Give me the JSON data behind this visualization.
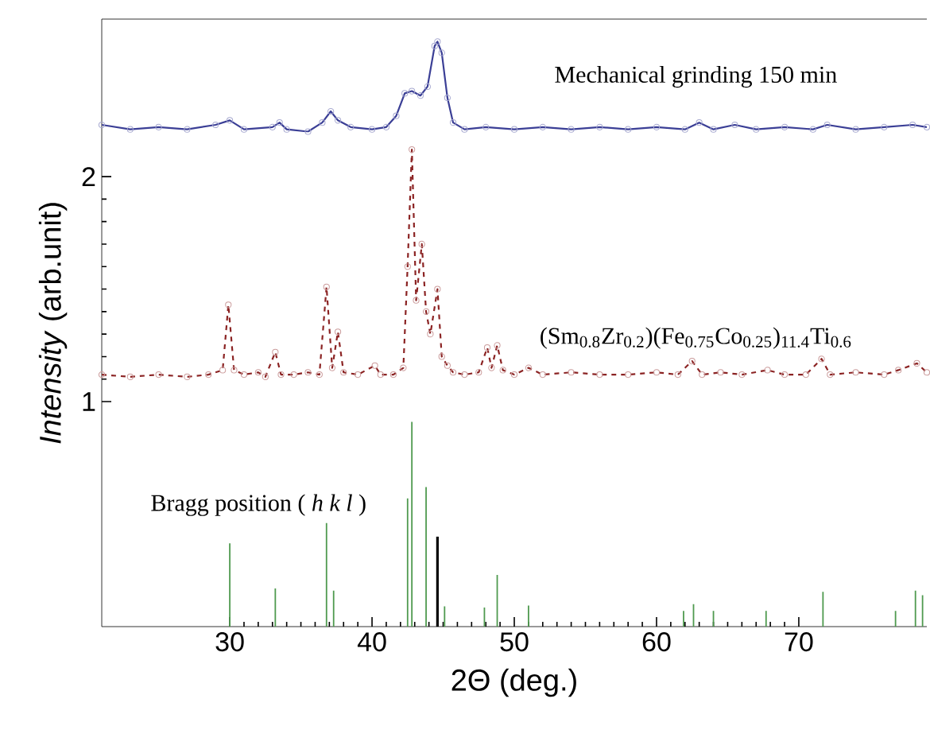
{
  "chart_data": {
    "type": "line",
    "xlabel": "2Θ (deg.)",
    "ylabel": "*Intensity* (arb.unit)",
    "xlim": [
      21,
      79
    ],
    "ylim": [
      0,
      2.7
    ],
    "xticks": [
      30,
      40,
      50,
      60,
      70
    ],
    "yticks": [
      1,
      2
    ],
    "marker": "circle",
    "series": [
      {
        "name": "Mechanical grinding 150 min",
        "color": "#3b3f96",
        "line_style": "solid",
        "x": [
          21,
          23,
          25,
          27,
          29,
          30,
          31,
          33,
          33.5,
          34,
          35.5,
          36.5,
          37.1,
          37.6,
          38.5,
          40,
          41,
          41.7,
          42.3,
          42.8,
          43.4,
          43.9,
          44.4,
          44.6,
          44.9,
          45.3,
          45.7,
          46.5,
          48,
          50,
          52,
          54,
          56,
          58,
          60,
          62,
          63,
          64,
          65.5,
          67,
          69,
          71,
          72,
          74,
          76,
          78,
          79
        ],
        "values": [
          2.23,
          2.21,
          2.22,
          2.21,
          2.23,
          2.25,
          2.21,
          2.22,
          2.24,
          2.21,
          2.2,
          2.24,
          2.29,
          2.25,
          2.22,
          2.21,
          2.22,
          2.27,
          2.37,
          2.38,
          2.36,
          2.4,
          2.58,
          2.6,
          2.55,
          2.35,
          2.24,
          2.21,
          2.22,
          2.21,
          2.22,
          2.21,
          2.22,
          2.21,
          2.22,
          2.21,
          2.24,
          2.21,
          2.23,
          2.21,
          2.22,
          2.21,
          2.23,
          2.21,
          2.22,
          2.23,
          2.22
        ]
      },
      {
        "name": "(Sm$_{0.8}$Zr$_{0.2}$)(Fe$_{0.75}$Co$_{0.25}$)$_{11.4}$Ti$_{0.6}$",
        "color": "#8b2323",
        "line_style": "dashed",
        "x": [
          21,
          23,
          25,
          27,
          28.5,
          29.5,
          29.9,
          30.3,
          31,
          32,
          32.5,
          33.2,
          33.6,
          34.5,
          35.5,
          36.3,
          36.8,
          37.2,
          37.6,
          38,
          39,
          40.2,
          40.6,
          41.5,
          42.2,
          42.5,
          42.8,
          43.1,
          43.5,
          43.8,
          44.1,
          44.6,
          44.9,
          45.3,
          45.7,
          46.5,
          47.5,
          48.1,
          48.4,
          48.8,
          49.2,
          50,
          51,
          52,
          54,
          56,
          58,
          60,
          61.5,
          62.5,
          63.2,
          64.5,
          66,
          67.8,
          69,
          70.5,
          71.6,
          72.2,
          74,
          76,
          77,
          78.3,
          79
        ],
        "values": [
          1.12,
          1.11,
          1.12,
          1.11,
          1.12,
          1.14,
          1.43,
          1.14,
          1.12,
          1.13,
          1.11,
          1.22,
          1.12,
          1.12,
          1.13,
          1.12,
          1.51,
          1.15,
          1.31,
          1.13,
          1.12,
          1.16,
          1.12,
          1.12,
          1.15,
          1.6,
          2.12,
          1.45,
          1.7,
          1.4,
          1.3,
          1.5,
          1.2,
          1.16,
          1.13,
          1.12,
          1.13,
          1.24,
          1.15,
          1.25,
          1.14,
          1.12,
          1.15,
          1.12,
          1.13,
          1.12,
          1.12,
          1.13,
          1.12,
          1.18,
          1.12,
          1.13,
          1.12,
          1.14,
          1.12,
          1.12,
          1.19,
          1.12,
          1.13,
          1.12,
          1.14,
          1.17,
          1.13
        ]
      },
      {
        "name": "Bragg position ( *h k l* )",
        "type": "bar",
        "color": "#4f9a4f",
        "x": [
          30.0,
          33.2,
          36.8,
          37.3,
          42.5,
          42.8,
          43.8,
          45.1,
          47.9,
          48.8,
          51.0,
          61.9,
          62.6,
          64.0,
          67.7,
          71.7,
          76.8,
          78.2,
          78.7
        ],
        "values": [
          0.37,
          0.17,
          0.46,
          0.16,
          0.57,
          0.91,
          0.62,
          0.09,
          0.085,
          0.23,
          0.094,
          0.07,
          0.1,
          0.07,
          0.07,
          0.155,
          0.07,
          0.16,
          0.14
        ]
      },
      {
        "type": "bar",
        "color": "#000000",
        "x": [
          44.6
        ],
        "values": [
          0.4
        ]
      }
    ]
  }
}
